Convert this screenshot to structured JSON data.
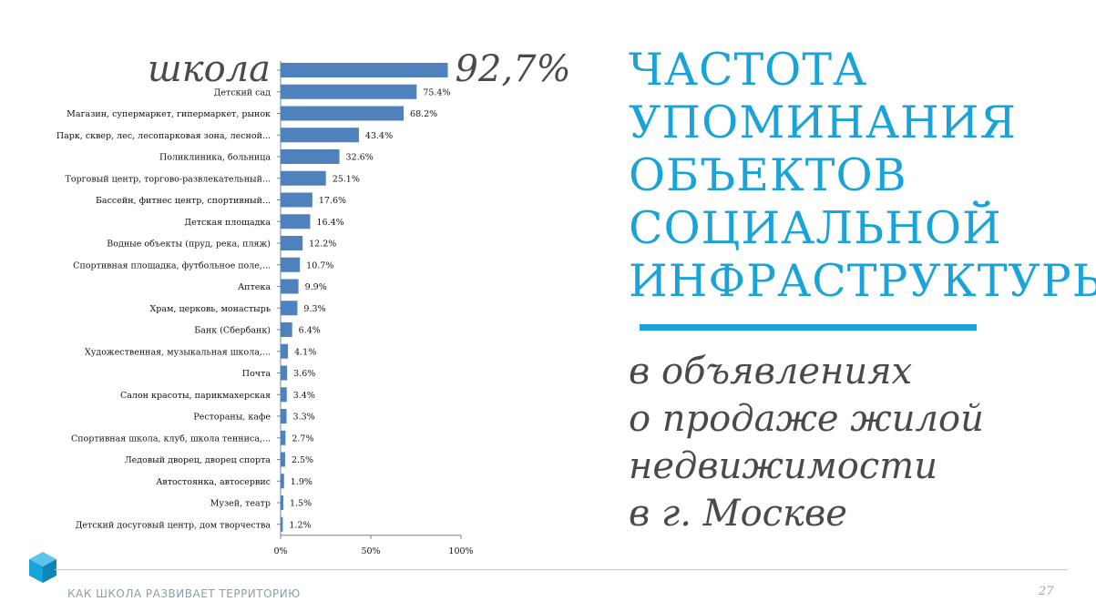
{
  "chart_data": {
    "type": "bar",
    "orientation": "horizontal",
    "categories": [
      "школа",
      "Детский сад",
      "Магазин, супермаркет, гипермаркет, рынок",
      "Парк, сквер, лес, лесопарковая зона, лесной...",
      "Поликлиника, больница",
      "Торговый центр, торгово-развлекательный...",
      "Бассейн, фитнес центр, спортивный...",
      "Детская площадка",
      "Водные объекты (пруд, река, пляж)",
      "Спортивная площадка, футбольное поле,...",
      "Аптека",
      "Храм, церковь, монастырь",
      "Банк (Сбербанк)",
      "Художественная, музыкальная школа,...",
      "Почта",
      "Салон красоты, парикмахерская",
      "Рестораны, кафе",
      "Спортивная школа, клуб, школа тенниса,...",
      "Ледовый дворец, дворец спорта",
      "Автостоянка, автосервис",
      "Музей, театр",
      "Детский досуговый центр, дом творчества"
    ],
    "values": [
      92.7,
      75.4,
      68.2,
      43.4,
      32.6,
      25.1,
      17.6,
      16.4,
      12.2,
      10.7,
      9.9,
      9.3,
      6.4,
      4.1,
      3.6,
      3.4,
      3.3,
      2.7,
      2.5,
      1.9,
      1.5,
      1.2
    ],
    "value_labels": [
      "92,7%",
      "75.4%",
      "68.2%",
      "43.4%",
      "32.6%",
      "25.1%",
      "17.6%",
      "16.4%",
      "12.2%",
      "10.7%",
      "9.9%",
      "9.3%",
      "6.4%",
      "4.1%",
      "3.6%",
      "3.4%",
      "3.3%",
      "2.7%",
      "2.5%",
      "1.9%",
      "1.5%",
      "1.2%"
    ],
    "x_ticks": [
      "0%",
      "50%",
      "100%"
    ],
    "xlim": [
      0,
      100
    ],
    "grid": false,
    "bar_color": "#4f81bd"
  },
  "title_lines": [
    "ЧАСТОТА",
    "УПОМИНАНИЯ",
    "ОБЪЕКТОВ",
    "СОЦИАЛЬНОЙ",
    "ИНФРАСТРУКТУРЫ"
  ],
  "subtitle_lines": [
    "в объявлениях",
    "о продаже жилой",
    "недвижимости",
    "в г. Москве"
  ],
  "footer": {
    "text": "КАК ШКОЛА РАЗВИВАЕТ ТЕРРИТОРИЮ",
    "page_number": "27"
  },
  "colors": {
    "accent": "#1aa3d9",
    "subtitle": "#4a4a4a",
    "logo": "#1aa3d9"
  }
}
